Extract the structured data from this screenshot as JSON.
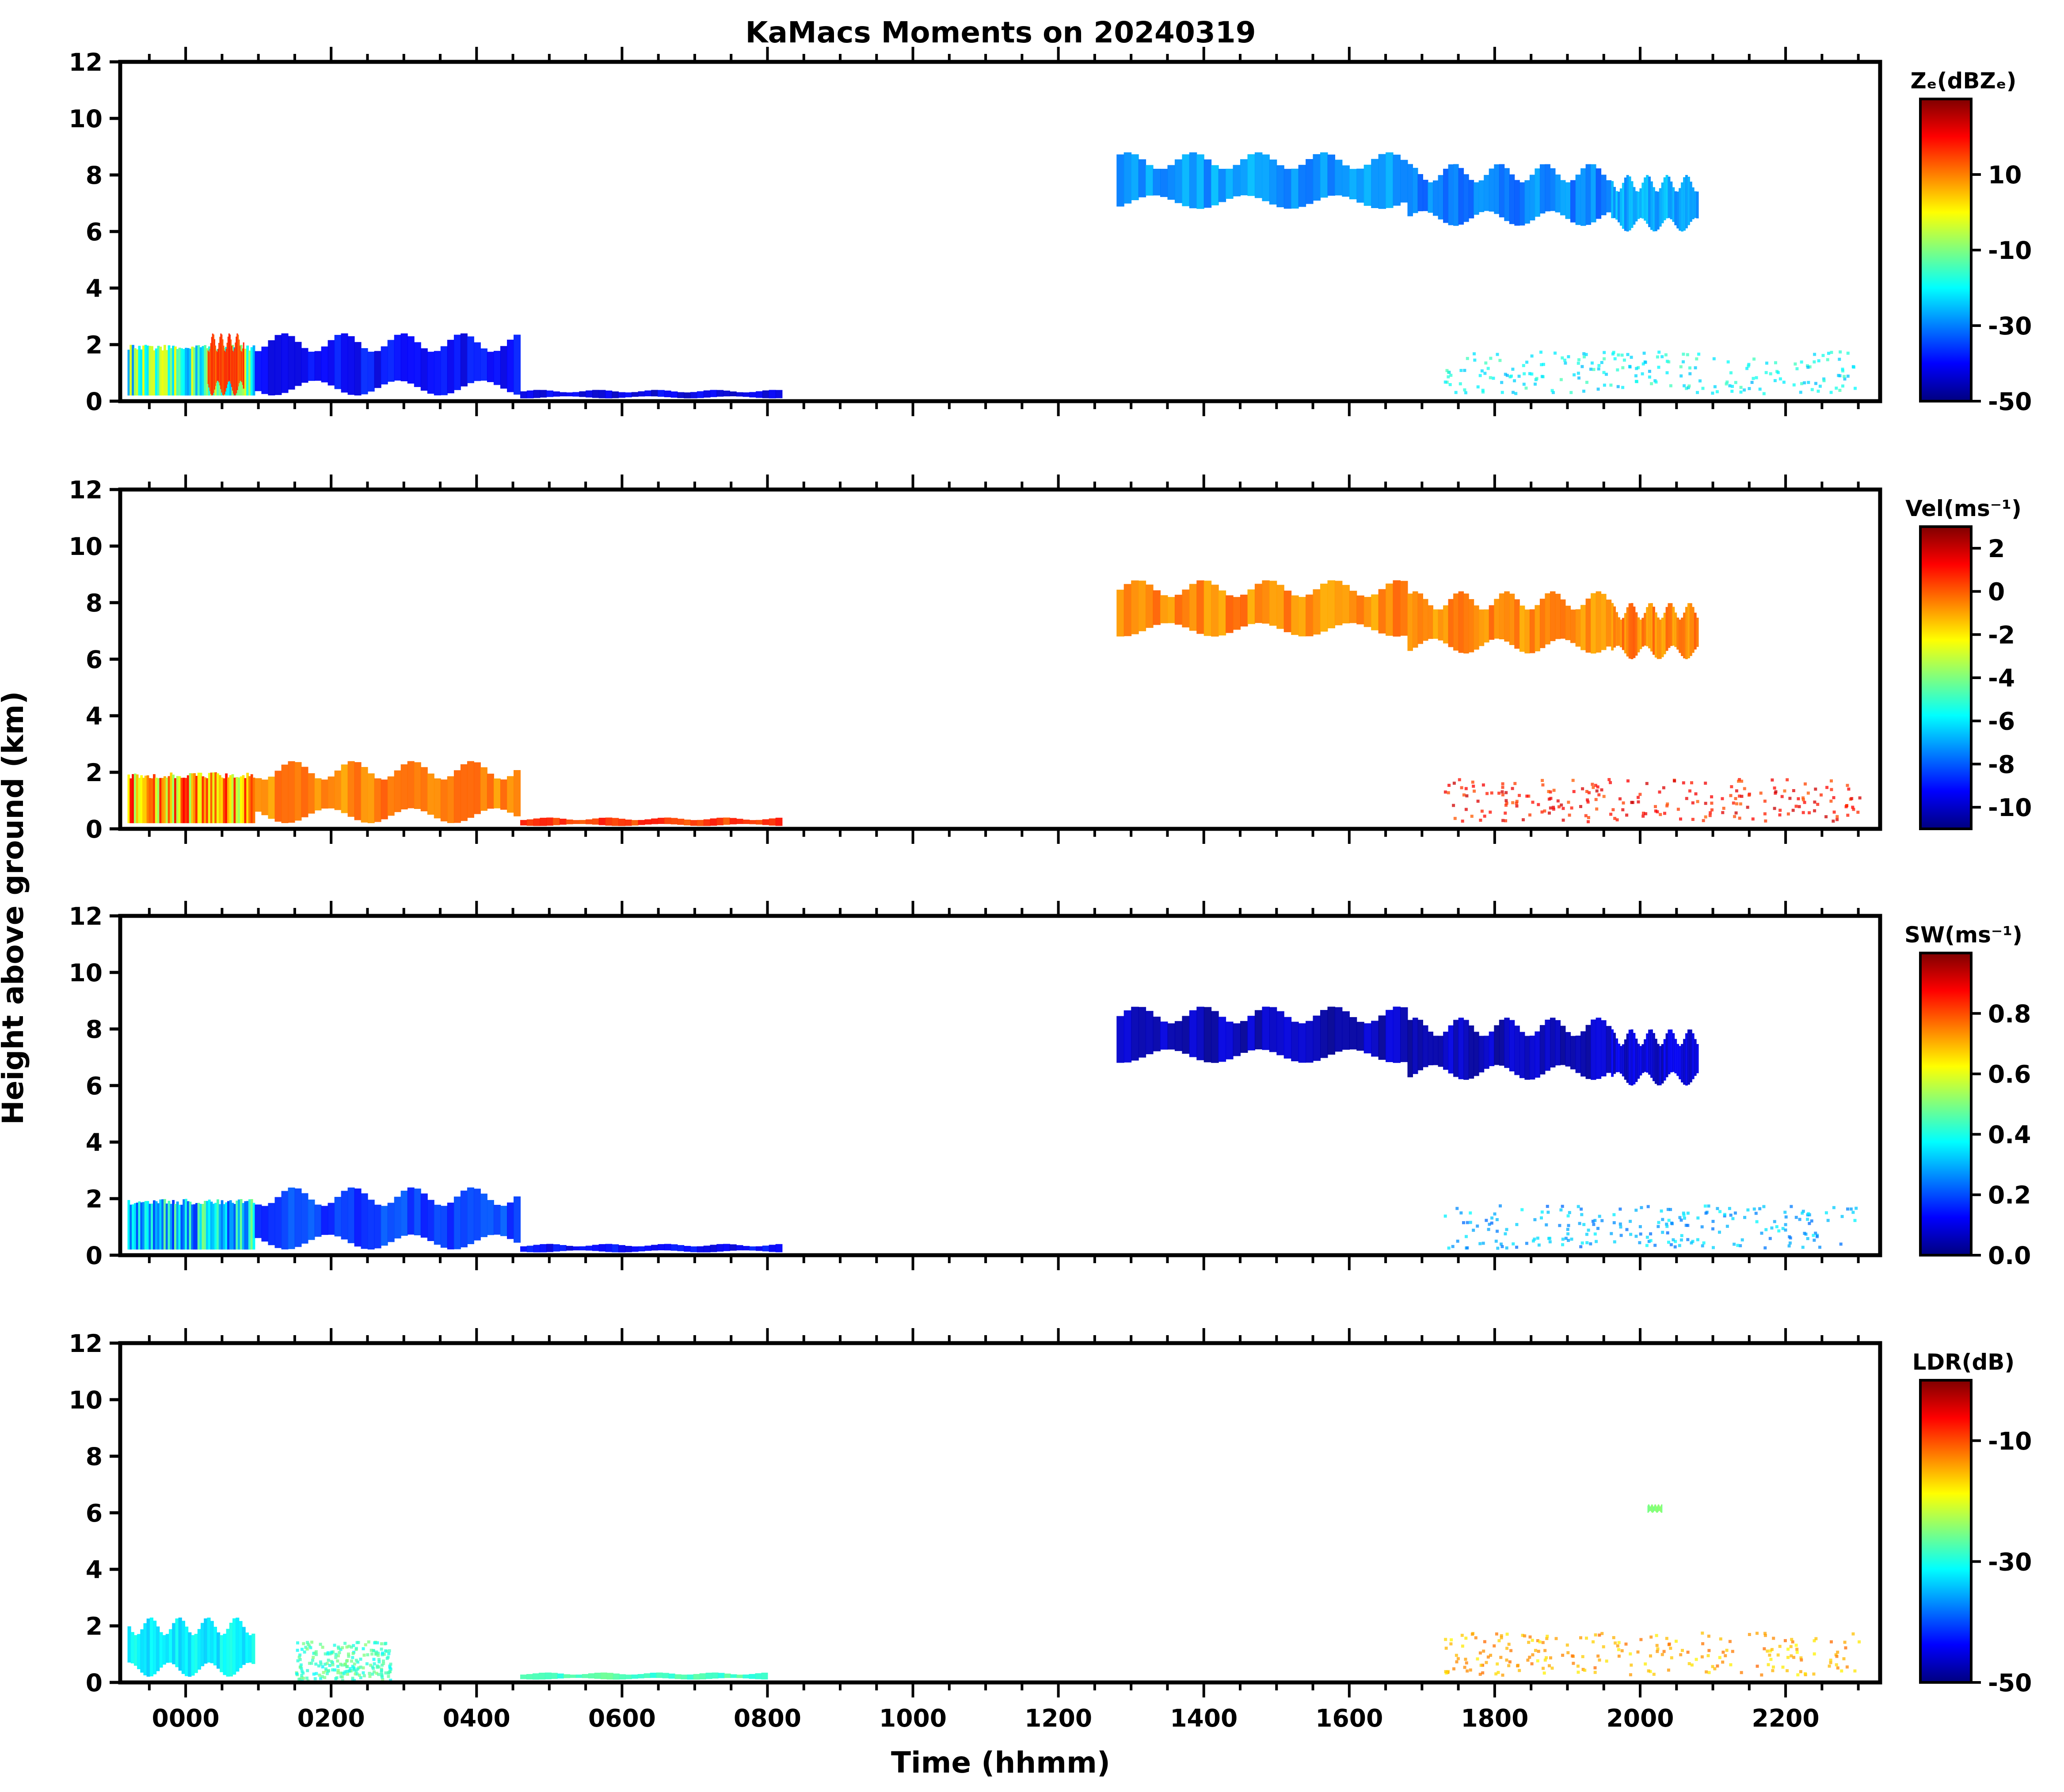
{
  "figure": {
    "title": "KaMacs Moments on 20240319",
    "ylabel": "Height above ground (km)",
    "xlabel": "Time (hhmm)"
  },
  "colors": {
    "jet": [
      "#00007f",
      "#0000ff",
      "#007fff",
      "#00ffff",
      "#7fff7f",
      "#ffff00",
      "#ff7f00",
      "#ff0000",
      "#7f0000"
    ],
    "axis": "#000000"
  },
  "chart_data": [
    {
      "type": "heatmap",
      "name": "Ze",
      "colorbar_label": "Zₑ(dBZₑ)",
      "colorbar_range": [
        -50,
        30
      ],
      "colorbar_ticks": [
        {
          "value": 10,
          "label": "10"
        },
        {
          "value": -10,
          "label": "-10"
        },
        {
          "value": -30,
          "label": "-30"
        },
        {
          "value": -50,
          "label": "-50"
        }
      ],
      "x_range": [
        -0.9,
        23.3
      ],
      "ylim": [
        0,
        12
      ],
      "y_ticks": [
        "0",
        "2",
        "4",
        "6",
        "8",
        "10",
        "12"
      ],
      "x_tick_labels": [],
      "regions": [
        {
          "x": [
            -0.8,
            0.95
          ],
          "y": [
            0.2,
            2.0
          ],
          "value": -15,
          "streaks": true
        },
        {
          "x": [
            0.3,
            0.8
          ],
          "y": [
            0.2,
            2.4
          ],
          "value": 15
        },
        {
          "x": [
            0.95,
            4.6
          ],
          "y": [
            0.2,
            2.4
          ],
          "value": -40
        },
        {
          "x": [
            4.6,
            8.2
          ],
          "y": [
            0.1,
            0.4
          ],
          "value": -42
        },
        {
          "x": [
            12.8,
            16.8
          ],
          "y": [
            6.8,
            8.8
          ],
          "value": -28
        },
        {
          "x": [
            16.8,
            19.6
          ],
          "y": [
            6.2,
            8.4
          ],
          "value": -30
        },
        {
          "x": [
            19.6,
            20.8
          ],
          "y": [
            6.0,
            8.0
          ],
          "value": -27
        },
        {
          "x": [
            17.3,
            23.0
          ],
          "y": [
            0.3,
            1.8
          ],
          "value": -20,
          "sparse": true
        }
      ]
    },
    {
      "type": "heatmap",
      "name": "Vel",
      "colorbar_label": "Vel(ms⁻¹)",
      "colorbar_range": [
        -11,
        3
      ],
      "colorbar_ticks": [
        {
          "value": 2,
          "label": "2"
        },
        {
          "value": 0,
          "label": "0"
        },
        {
          "value": -2,
          "label": "-2"
        },
        {
          "value": -4,
          "label": "-4"
        },
        {
          "value": -6,
          "label": "-6"
        },
        {
          "value": -8,
          "label": "-8"
        },
        {
          "value": -10,
          "label": "-10"
        }
      ],
      "x_range": [
        -0.9,
        23.3
      ],
      "ylim": [
        0,
        12
      ],
      "y_ticks": [
        "0",
        "2",
        "4",
        "6",
        "8",
        "10",
        "12"
      ],
      "x_tick_labels": [],
      "regions": [
        {
          "x": [
            -0.8,
            0.95
          ],
          "y": [
            0.2,
            2.0
          ],
          "value": -1.2,
          "streaks": true
        },
        {
          "x": [
            0.95,
            4.6
          ],
          "y": [
            0.2,
            2.4
          ],
          "value": -0.5
        },
        {
          "x": [
            4.6,
            8.2
          ],
          "y": [
            0.1,
            0.4
          ],
          "value": 0.5
        },
        {
          "x": [
            12.8,
            16.8
          ],
          "y": [
            6.8,
            8.8
          ],
          "value": -0.6
        },
        {
          "x": [
            16.8,
            19.6
          ],
          "y": [
            6.2,
            8.4
          ],
          "value": -0.6
        },
        {
          "x": [
            19.6,
            20.8
          ],
          "y": [
            6.0,
            8.0
          ],
          "value": -0.5
        },
        {
          "x": [
            17.3,
            23.0
          ],
          "y": [
            0.3,
            1.8
          ],
          "value": 1.0,
          "sparse": true
        }
      ]
    },
    {
      "type": "heatmap",
      "name": "SW",
      "colorbar_label": "SW(ms⁻¹)",
      "colorbar_range": [
        0,
        1
      ],
      "colorbar_ticks": [
        {
          "value": 0.8,
          "label": "0.8"
        },
        {
          "value": 0.6,
          "label": "0.6"
        },
        {
          "value": 0.4,
          "label": "0.4"
        },
        {
          "value": 0.2,
          "label": "0.2"
        },
        {
          "value": 0.0,
          "label": "0.0"
        }
      ],
      "x_range": [
        -0.9,
        23.3
      ],
      "ylim": [
        0,
        12
      ],
      "y_ticks": [
        "0",
        "2",
        "4",
        "6",
        "8",
        "10",
        "12"
      ],
      "x_tick_labels": [],
      "regions": [
        {
          "x": [
            -0.8,
            0.95
          ],
          "y": [
            0.2,
            2.0
          ],
          "value": 0.35,
          "streaks": true
        },
        {
          "x": [
            0.95,
            4.6
          ],
          "y": [
            0.2,
            2.4
          ],
          "value": 0.18
        },
        {
          "x": [
            4.6,
            8.2
          ],
          "y": [
            0.1,
            0.4
          ],
          "value": 0.12
        },
        {
          "x": [
            12.8,
            16.8
          ],
          "y": [
            6.8,
            8.8
          ],
          "value": 0.06
        },
        {
          "x": [
            16.8,
            19.6
          ],
          "y": [
            6.2,
            8.4
          ],
          "value": 0.06
        },
        {
          "x": [
            19.6,
            20.8
          ],
          "y": [
            6.0,
            8.0
          ],
          "value": 0.08
        },
        {
          "x": [
            17.3,
            23.0
          ],
          "y": [
            0.3,
            1.8
          ],
          "value": 0.3,
          "sparse": true
        }
      ]
    },
    {
      "type": "heatmap",
      "name": "LDR",
      "colorbar_label": "LDR(dB)",
      "colorbar_range": [
        -50,
        0
      ],
      "colorbar_ticks": [
        {
          "value": -10,
          "label": "-10"
        },
        {
          "value": -30,
          "label": "-30"
        },
        {
          "value": -50,
          "label": "-50"
        }
      ],
      "x_range": [
        -0.9,
        23.3
      ],
      "ylim": [
        0,
        12
      ],
      "y_ticks": [
        "0",
        "2",
        "4",
        "6",
        "8",
        "10",
        "12"
      ],
      "x_tick_labels": [
        "0000",
        "0200",
        "0400",
        "0600",
        "0800",
        "1000",
        "1200",
        "1400",
        "1600",
        "1800",
        "2000",
        "2200"
      ],
      "regions": [
        {
          "x": [
            -0.8,
            0.95
          ],
          "y": [
            0.2,
            2.3
          ],
          "value": -32
        },
        {
          "x": [
            1.5,
            2.8
          ],
          "y": [
            0.1,
            1.5
          ],
          "value": -28,
          "sparse": true
        },
        {
          "x": [
            4.6,
            8.0
          ],
          "y": [
            0.1,
            0.35
          ],
          "value": -28
        },
        {
          "x": [
            20.1,
            20.3
          ],
          "y": [
            6.0,
            6.3
          ],
          "value": -25
        },
        {
          "x": [
            17.3,
            23.0
          ],
          "y": [
            0.3,
            1.8
          ],
          "value": -15,
          "sparse": true
        }
      ]
    }
  ]
}
